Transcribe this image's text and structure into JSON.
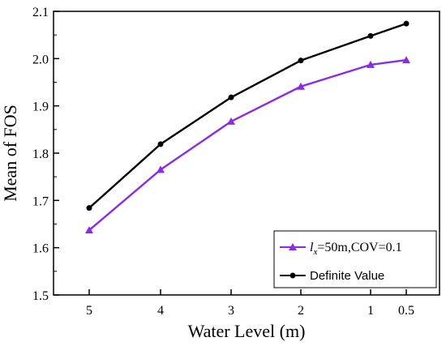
{
  "chart_data": {
    "type": "line",
    "x": [
      5,
      4,
      3,
      2,
      1,
      0.5
    ],
    "x_tick_labels": [
      "5",
      "4",
      "3",
      "2",
      "1",
      "0.5"
    ],
    "series": [
      {
        "name_parts": {
          "symbol": "l",
          "subscript": "x",
          "rest": "=50m,COV=0.1"
        },
        "color": "#8b2be2",
        "marker": "triangle",
        "values": [
          1.637,
          1.765,
          1.867,
          1.941,
          1.987,
          1.997
        ]
      },
      {
        "name": "Definite Value",
        "color": "#000000",
        "marker": "circle",
        "values": [
          1.684,
          1.819,
          1.918,
          1.996,
          2.048,
          2.074
        ]
      }
    ],
    "xlabel": "Water Level (m)",
    "ylabel": "Mean of FOS",
    "ylim": [
      1.5,
      2.1
    ],
    "y_ticks": [
      "1.5",
      "1.6",
      "1.7",
      "1.8",
      "1.9",
      "2.0",
      "2.1"
    ],
    "grid": false,
    "legend_position": "bottom-right"
  }
}
